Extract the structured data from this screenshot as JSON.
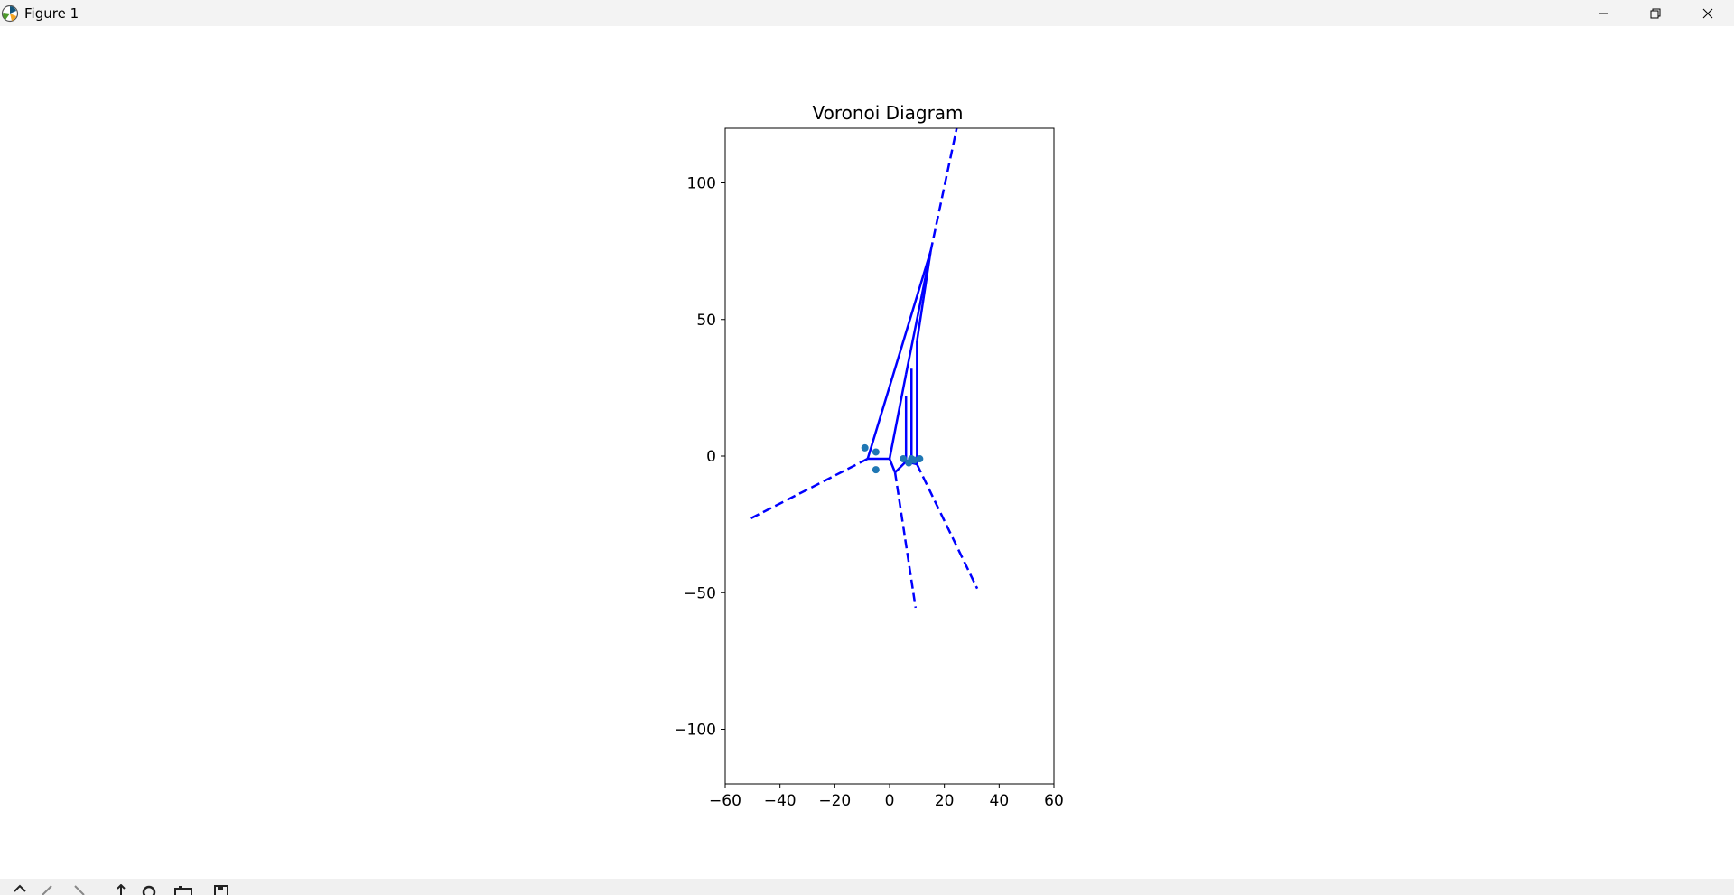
{
  "window": {
    "title": "Figure 1",
    "icons": {
      "app": "matplotlib-logo-icon",
      "minimize": "minimize-icon",
      "maximize": "restore-icon",
      "close": "close-icon"
    }
  },
  "toolbar": {
    "icons": [
      "home-icon",
      "back-arrow-icon",
      "forward-arrow-icon",
      "pan-icon",
      "zoom-icon",
      "configure-subplots-icon",
      "save-icon"
    ]
  },
  "colors": {
    "edges": "#0000ff",
    "points": "#1f77b4",
    "axes": "#000000",
    "window_bar": "#f3f3f3",
    "toolbar": "#f0f0f0"
  },
  "chart_data": {
    "type": "scatter",
    "title": "Voronoi Diagram",
    "xlabel": "",
    "ylabel": "",
    "xlim": [
      -60,
      60
    ],
    "ylim": [
      -120,
      120
    ],
    "xticks": [
      -60,
      -40,
      -20,
      0,
      20,
      40,
      60
    ],
    "xtick_labels": [
      "−60",
      "−40",
      "−20",
      "0",
      "20",
      "40",
      "60"
    ],
    "yticks": [
      100,
      50,
      0,
      -50,
      -100
    ],
    "ytick_labels": [
      "100",
      "50",
      "0",
      "−50",
      "−100"
    ],
    "grid": false,
    "legend": "none",
    "points": {
      "x": [
        -9,
        -5,
        -5,
        5,
        7,
        8,
        9,
        11
      ],
      "y": [
        3,
        1.5,
        -5,
        -1,
        -2.5,
        -1,
        -1.5,
        -1
      ]
    },
    "finite_edges": [
      [
        [
          -8,
          -1
        ],
        [
          0,
          -1
        ]
      ],
      [
        [
          -8,
          -1
        ],
        [
          15,
          75
        ]
      ],
      [
        [
          0,
          -1
        ],
        [
          2,
          -6
        ]
      ],
      [
        [
          2,
          -6
        ],
        [
          6,
          -2
        ]
      ],
      [
        [
          0,
          -1
        ],
        [
          6,
          30
        ]
      ],
      [
        [
          6,
          30
        ],
        [
          15,
          75
        ]
      ],
      [
        [
          10,
          42
        ],
        [
          15,
          75
        ]
      ],
      [
        [
          6,
          -2
        ],
        [
          6,
          22
        ]
      ],
      [
        [
          8,
          -2
        ],
        [
          8,
          32
        ]
      ],
      [
        [
          10,
          -3
        ],
        [
          10,
          42
        ]
      ],
      [
        [
          6,
          -2
        ],
        [
          10,
          -3
        ]
      ]
    ],
    "infinite_edges": [
      [
        [
          -8,
          -1
        ],
        [
          -52,
          -23.5
        ]
      ],
      [
        [
          2,
          -6
        ],
        [
          9.5,
          -55.5
        ]
      ],
      [
        [
          10,
          -3
        ],
        [
          32,
          -48.5
        ]
      ],
      [
        [
          15,
          75
        ],
        [
          24.5,
          120
        ]
      ]
    ]
  }
}
